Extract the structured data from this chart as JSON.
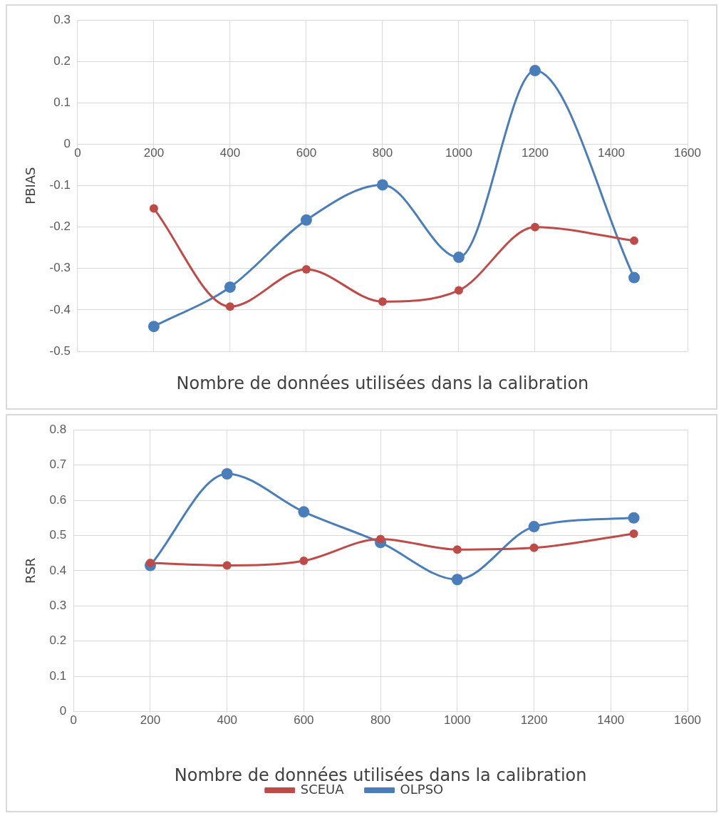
{
  "chart_data": [
    {
      "type": "line",
      "ylabel": "PBIAS",
      "xlabel": "Nombre de données utilisées dans la calibration",
      "x": [
        200,
        400,
        600,
        800,
        1000,
        1200,
        1460
      ],
      "xlim": [
        0,
        1600
      ],
      "xticks": [
        0,
        200,
        400,
        600,
        800,
        1000,
        1200,
        1400,
        1600
      ],
      "ylim": [
        -0.5,
        0.3
      ],
      "yticks": [
        -0.5,
        -0.4,
        -0.3,
        -0.2,
        -0.1,
        0,
        0.1,
        0.2,
        0.3
      ],
      "grid": true,
      "legend": false,
      "marker": "circle",
      "line_style": "solid",
      "series": [
        {
          "color": "#4a7ebb",
          "values": [
            -0.44,
            -0.345,
            -0.183,
            -0.098,
            -0.273,
            0.178,
            -0.322
          ]
        },
        {
          "color": "#be4b48",
          "values": [
            -0.155,
            -0.392,
            -0.302,
            -0.38,
            -0.353,
            -0.2,
            -0.233
          ]
        }
      ]
    },
    {
      "type": "line",
      "ylabel": "RSR",
      "xlabel": "Nombre de données utilisées dans la calibration",
      "x": [
        200,
        400,
        600,
        800,
        1000,
        1200,
        1460
      ],
      "xlim": [
        0,
        1600
      ],
      "xticks": [
        0,
        200,
        400,
        600,
        800,
        1000,
        1200,
        1400,
        1600
      ],
      "ylim": [
        0,
        0.8
      ],
      "yticks": [
        0,
        0.1,
        0.2,
        0.3,
        0.4,
        0.5,
        0.6,
        0.7,
        0.8
      ],
      "grid": true,
      "legend": "bottom",
      "marker": "circle",
      "line_style": "solid",
      "series": [
        {
          "name": "OLPSO",
          "color": "#4a7ebb",
          "values": [
            0.415,
            0.675,
            0.567,
            0.48,
            0.375,
            0.525,
            0.55
          ]
        },
        {
          "name": "SCEUA",
          "color": "#be4b48",
          "values": [
            0.422,
            0.415,
            0.428,
            0.49,
            0.46,
            0.465,
            0.505
          ]
        }
      ]
    }
  ]
}
